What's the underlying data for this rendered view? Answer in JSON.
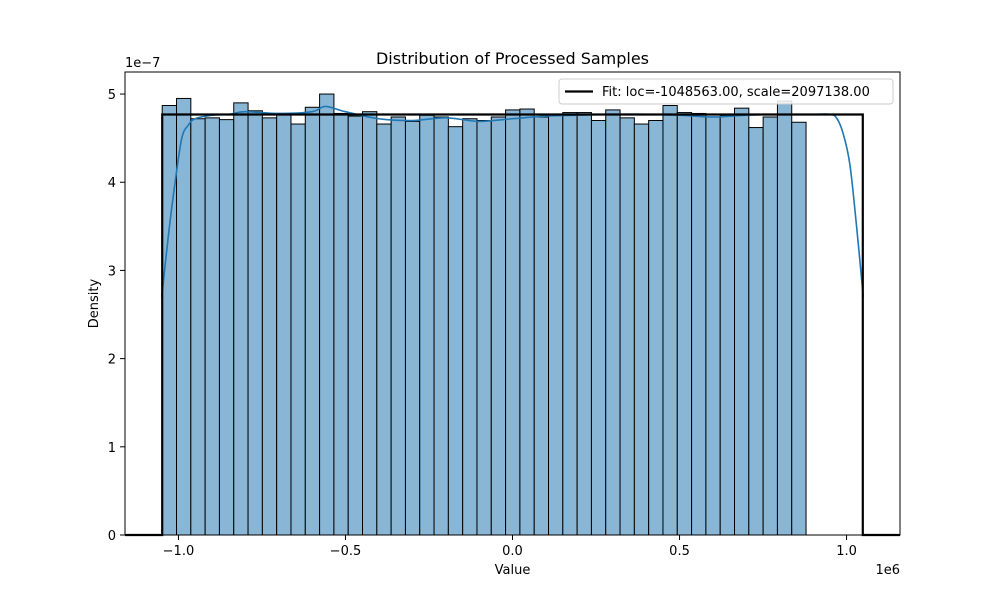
{
  "chart_data": {
    "type": "bar",
    "title": "Distribution of Processed Samples",
    "xlabel": "Value",
    "ylabel": "Density",
    "x_offset_text": "1e6",
    "y_offset_text": "1e−7",
    "xlim": [
      -1.16,
      1.16
    ],
    "ylim": [
      0,
      5.25
    ],
    "x_ticks": [
      -1.0,
      -0.5,
      0.0,
      0.5,
      1.0
    ],
    "x_tick_labels": [
      "−1.0",
      "−0.5",
      "0.0",
      "0.5",
      "1.0"
    ],
    "y_ticks": [
      0,
      1,
      2,
      3,
      4,
      5
    ],
    "y_tick_labels": [
      "0",
      "1",
      "2",
      "3",
      "4",
      "5"
    ],
    "grid": false,
    "legend_position": "top-right",
    "colors": {
      "bar_fill": "#8ab6d6",
      "bar_edge": "#000000",
      "kde": "#1f77b4",
      "fit": "#000000"
    },
    "histogram": {
      "bin_start": -1.0486,
      "bin_width": 0.04283,
      "values": [
        4.87,
        4.95,
        4.72,
        4.73,
        4.71,
        4.9,
        4.81,
        4.73,
        4.78,
        4.66,
        4.85,
        5.0,
        4.78,
        4.75,
        4.8,
        4.66,
        4.74,
        4.69,
        4.76,
        4.74,
        4.63,
        4.72,
        4.7,
        4.74,
        4.82,
        4.83,
        4.74,
        4.77,
        4.79,
        4.79,
        4.7,
        4.82,
        4.73,
        4.66,
        4.7,
        4.87,
        4.79,
        4.78,
        4.74,
        4.75,
        4.84,
        4.62,
        4.74,
        4.92,
        4.68
      ]
    },
    "kde": {
      "name": "",
      "x": [
        -1.05,
        -1.03,
        -1.01,
        -0.99,
        -0.97,
        -0.95,
        -0.9,
        -0.85,
        -0.8,
        -0.7,
        -0.6,
        -0.56,
        -0.5,
        -0.4,
        -0.3,
        -0.2,
        -0.1,
        0.0,
        0.1,
        0.2,
        0.3,
        0.4,
        0.5,
        0.6,
        0.7,
        0.8,
        0.9,
        0.95,
        0.97,
        0.99,
        1.01,
        1.03,
        1.05
      ],
      "y": [
        2.7,
        3.4,
        4.0,
        4.5,
        4.65,
        4.72,
        4.76,
        4.77,
        4.8,
        4.78,
        4.8,
        4.86,
        4.8,
        4.72,
        4.7,
        4.73,
        4.69,
        4.72,
        4.75,
        4.76,
        4.77,
        4.77,
        4.76,
        4.74,
        4.76,
        4.77,
        4.77,
        4.77,
        4.73,
        4.55,
        4.2,
        3.5,
        2.7
      ]
    },
    "fit": {
      "name": "Fit: loc=-1048563.00, scale=2097138.00",
      "x": [
        -1.16,
        -1.0486,
        -1.0486,
        1.0486,
        1.0486,
        1.16
      ],
      "y": [
        0,
        0,
        4.768,
        4.768,
        0,
        0
      ]
    }
  }
}
